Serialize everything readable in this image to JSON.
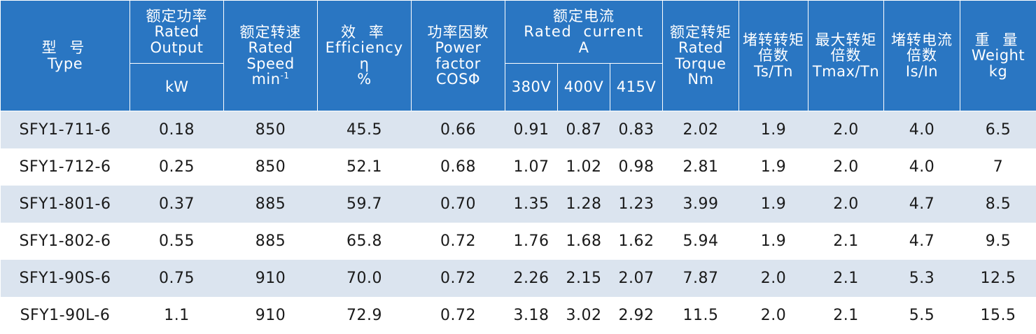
{
  "header": {
    "type": {
      "cn": "型 号",
      "en": "Type"
    },
    "rated_output": {
      "cn": "额定功率",
      "en1": "Rated",
      "en2": "Output",
      "unit": "kW"
    },
    "rated_speed": {
      "cn": "额定转速",
      "en1": "Rated",
      "en2": "Speed",
      "unit_base": "min",
      "unit_sup": "-1"
    },
    "efficiency": {
      "cn": "效 率",
      "en": "Efficiency",
      "symbol": "η",
      "unit": "%"
    },
    "power_factor": {
      "cn": "功率因数",
      "en1": "Power",
      "en2": "factor",
      "en3": "COSΦ"
    },
    "rated_current": {
      "cn": "额定电流",
      "en": "Rated  current",
      "unit": "A",
      "v1": "380V",
      "v2": "400V",
      "v3": "415V"
    },
    "rated_torque": {
      "cn": "额定转矩",
      "en1": "Rated",
      "en2": "Torque",
      "unit": "Nm"
    },
    "locked_torque": {
      "cn1": "堵转转矩",
      "cn2": "倍数",
      "en": "Ts/Tn"
    },
    "max_torque": {
      "cn1": "最大转矩",
      "cn2": "倍数",
      "en": "Tmax/Tn"
    },
    "locked_current": {
      "cn1": "堵转电流",
      "cn2": "倍数",
      "en": "Is/In"
    },
    "weight": {
      "cn": "重 量",
      "en": "Weight",
      "unit": "kg"
    }
  },
  "rows": [
    {
      "type": "SFY1-711-6",
      "output": "0.18",
      "speed": "850",
      "eff": "45.5",
      "pf": "0.66",
      "i380": "0.91",
      "i400": "0.87",
      "i415": "0.83",
      "torque": "2.02",
      "ts": "1.9",
      "tmax": "2.0",
      "is": "4.0",
      "weight": "6.5"
    },
    {
      "type": "SFY1-712-6",
      "output": "0.25",
      "speed": "850",
      "eff": "52.1",
      "pf": "0.68",
      "i380": "1.07",
      "i400": "1.02",
      "i415": "0.98",
      "torque": "2.81",
      "ts": "1.9",
      "tmax": "2.0",
      "is": "4.0",
      "weight": "7"
    },
    {
      "type": "SFY1-801-6",
      "output": "0.37",
      "speed": "885",
      "eff": "59.7",
      "pf": "0.70",
      "i380": "1.35",
      "i400": "1.28",
      "i415": "1.23",
      "torque": "3.99",
      "ts": "1.9",
      "tmax": "2.0",
      "is": "4.7",
      "weight": "8.5"
    },
    {
      "type": "SFY1-802-6",
      "output": "0.55",
      "speed": "885",
      "eff": "65.8",
      "pf": "0.72",
      "i380": "1.76",
      "i400": "1.68",
      "i415": "1.62",
      "torque": "5.94",
      "ts": "1.9",
      "tmax": "2.1",
      "is": "4.7",
      "weight": "9.5"
    },
    {
      "type": "SFY1-90S-6",
      "output": "0.75",
      "speed": "910",
      "eff": "70.0",
      "pf": "0.72",
      "i380": "2.26",
      "i400": "2.15",
      "i415": "2.07",
      "torque": "7.87",
      "ts": "2.0",
      "tmax": "2.1",
      "is": "5.3",
      "weight": "12.5"
    },
    {
      "type": "SFY1-90L-6",
      "output": "1.1",
      "speed": "910",
      "eff": "72.9",
      "pf": "0.72",
      "i380": "3.18",
      "i400": "3.02",
      "i415": "2.92",
      "torque": "11.5",
      "ts": "2.0",
      "tmax": "2.1",
      "is": "5.5",
      "weight": "15.5"
    }
  ],
  "colors": {
    "header_bg": "#2a76c2",
    "row_alt_bg": "#dbe4ef",
    "row_bg": "#ffffff",
    "header_text": "#ffffff",
    "body_text": "#1a1a1a"
  }
}
